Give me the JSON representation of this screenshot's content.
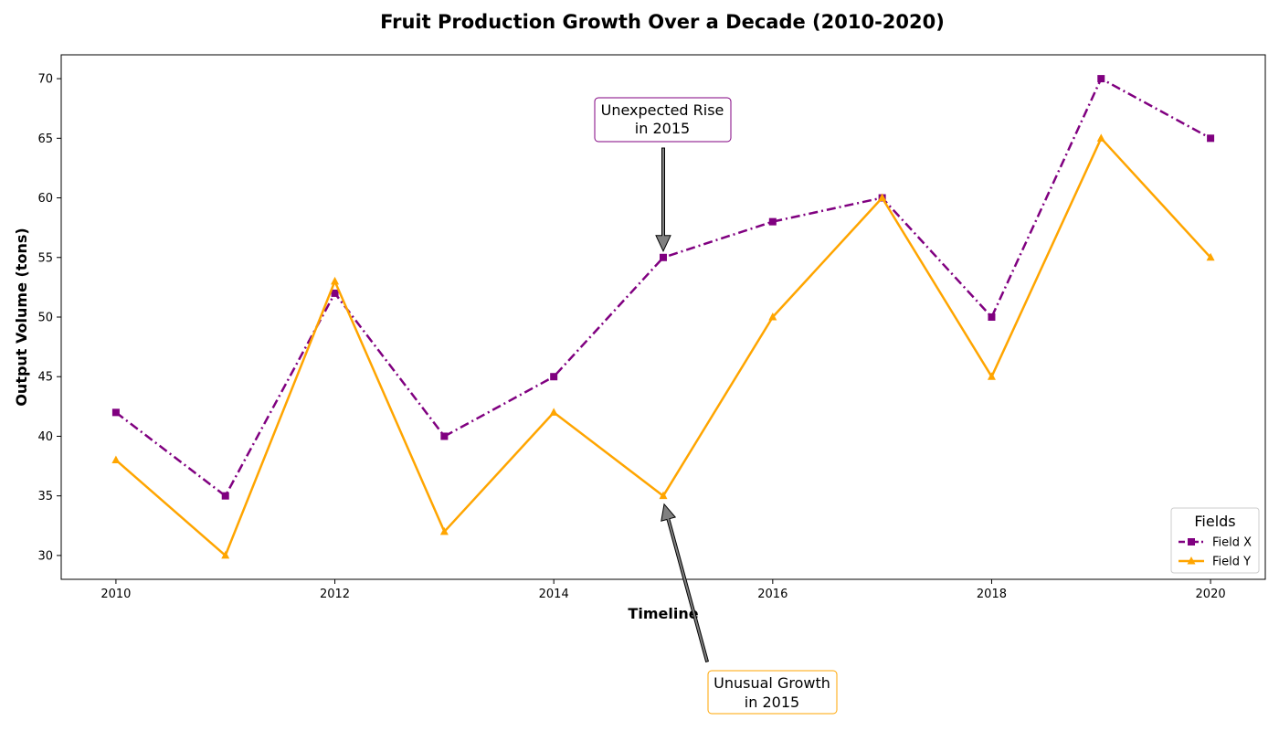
{
  "chart_data": {
    "type": "line",
    "title": "Fruit Production Growth Over a Decade (2010-2020)",
    "xlabel": "Timeline",
    "ylabel": "Output Volume (tons)",
    "x": [
      2010,
      2011,
      2012,
      2013,
      2014,
      2015,
      2016,
      2017,
      2018,
      2019,
      2020
    ],
    "xlim": [
      2009.5,
      2020.5
    ],
    "ylim": [
      28,
      72
    ],
    "xticks": [
      2010,
      2012,
      2014,
      2016,
      2018,
      2020
    ],
    "yticks": [
      30,
      35,
      40,
      45,
      50,
      55,
      60,
      65,
      70
    ],
    "grid": false,
    "legend": {
      "title": "Fields",
      "placement": "bottom-right"
    },
    "series": [
      {
        "name": "Field X",
        "values": [
          42,
          35,
          52,
          40,
          45,
          55,
          58,
          60,
          50,
          70,
          65
        ],
        "color": "#800080",
        "linestyle": "dashdot",
        "marker": "square"
      },
      {
        "name": "Field Y",
        "values": [
          38,
          30,
          53,
          32,
          42,
          35,
          50,
          60,
          45,
          65,
          55
        ],
        "color": "#FFA500",
        "linestyle": "solid",
        "marker": "triangle"
      }
    ],
    "annotations": [
      {
        "lines": [
          "Unexpected Rise",
          "in 2015"
        ],
        "point": [
          2015,
          55
        ],
        "series": "Field X",
        "border_color": "#800080"
      },
      {
        "lines": [
          "Unusual Growth",
          "in 2015"
        ],
        "point": [
          2015,
          35
        ],
        "series": "Field Y",
        "border_color": "#FFA500"
      }
    ]
  }
}
